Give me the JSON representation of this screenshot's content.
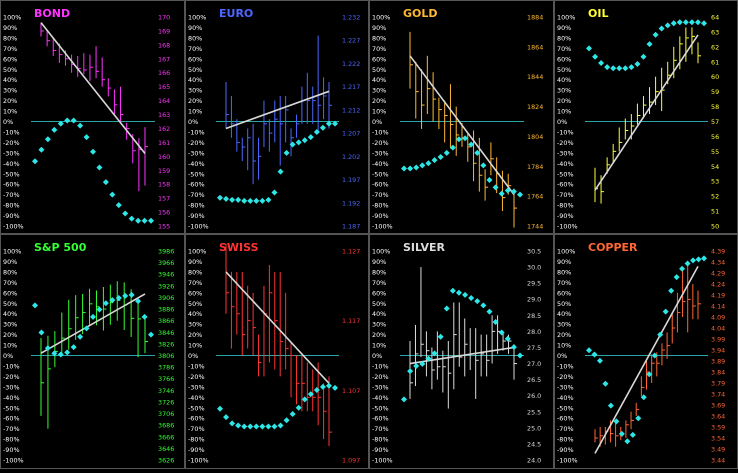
{
  "pct_labels": [
    "100%",
    "90%",
    "80%",
    "70%",
    "60%",
    "50%",
    "40%",
    "30%",
    "20%",
    "10%",
    "0%",
    "-10%",
    "-20%",
    "-30%",
    "-40%",
    "-50%",
    "-60%",
    "-70%",
    "-80%",
    "-90%",
    "-100%"
  ],
  "colors": {
    "background": "#000000",
    "divider": "#555555",
    "zero_line": "#2aa6a6",
    "oscillator": "#2ee6e6",
    "trend": "#d8d8d8"
  },
  "chart_data": [
    {
      "type": "bar",
      "title": "BOND",
      "color": "#ff33ff",
      "price_ticks": [
        "170",
        "169",
        "168",
        "167",
        "166",
        "165",
        "164",
        "163",
        "162",
        "161",
        "160",
        "159",
        "158",
        "157",
        "156",
        "155"
      ],
      "price_range": [
        155,
        170
      ],
      "bars": [
        [
          168.6,
          169.6,
          169.0
        ],
        [
          167.9,
          169.0,
          168.3
        ],
        [
          167.2,
          168.5,
          167.6
        ],
        [
          166.7,
          168.1,
          167.3
        ],
        [
          166.5,
          167.6,
          167.0
        ],
        [
          166.0,
          167.3,
          166.6
        ],
        [
          165.7,
          167.2,
          166.3
        ],
        [
          165.9,
          167.4,
          166.2
        ],
        [
          165.4,
          167.3,
          166.4
        ],
        [
          165.6,
          167.9,
          166.1
        ],
        [
          165.0,
          167.1,
          165.5
        ],
        [
          164.3,
          165.6,
          164.9
        ],
        [
          163.0,
          164.8,
          163.7
        ],
        [
          162.4,
          165.0,
          163.0
        ],
        [
          161.2,
          162.4,
          162.0
        ],
        [
          159.5,
          161.6,
          160.4
        ],
        [
          157.5,
          161.3,
          160.5
        ],
        [
          157.9,
          162.1,
          160.7
        ]
      ],
      "trend": [
        [
          0,
          169.6
        ],
        [
          17,
          160.2
        ]
      ],
      "osc": [
        -38,
        -27,
        -17,
        -8,
        -2,
        1,
        1,
        -4,
        -15,
        -29,
        -44,
        -58,
        -70,
        -80,
        -88,
        -93,
        -95,
        -95,
        -95
      ]
    },
    {
      "type": "bar",
      "title": "EURO",
      "color": "#4d66ff",
      "price_ticks": [
        "1.232",
        "1.227",
        "1.222",
        "1.217",
        "1.212",
        "1.207",
        "1.202",
        "1.197",
        "1.192",
        "1.187"
      ],
      "price_range": [
        1.187,
        1.232
      ],
      "bars": [
        [
          1.208,
          1.218,
          1.211
        ],
        [
          1.206,
          1.215,
          1.209
        ],
        [
          1.203,
          1.21,
          1.205
        ],
        [
          1.201,
          1.206,
          1.204
        ],
        [
          1.199,
          1.208,
          1.206
        ],
        [
          1.196,
          1.209,
          1.201
        ],
        [
          1.197,
          1.206,
          1.202
        ],
        [
          1.204,
          1.214,
          1.209
        ],
        [
          1.203,
          1.21,
          1.207
        ],
        [
          1.205,
          1.214,
          1.21
        ],
        [
          1.2,
          1.215,
          1.209
        ],
        [
          1.205,
          1.215,
          1.212
        ],
        [
          1.202,
          1.208,
          1.206
        ],
        [
          1.206,
          1.211,
          1.209
        ],
        [
          1.209,
          1.217,
          1.214
        ],
        [
          1.209,
          1.22,
          1.214
        ],
        [
          1.209,
          1.217,
          1.214
        ],
        [
          1.207,
          1.228,
          1.213
        ],
        [
          1.21,
          1.219,
          1.215
        ],
        [
          1.208,
          1.218,
          1.213
        ]
      ],
      "trend": [
        [
          0,
          1.208
        ],
        [
          19,
          1.216
        ]
      ],
      "osc": [
        -73,
        -74,
        -75,
        -75,
        -76,
        -76,
        -76,
        -76,
        -75,
        -68,
        -48,
        -30,
        -22,
        -20,
        -18,
        -15,
        -10,
        -6,
        -2,
        -2
      ]
    },
    {
      "type": "bar",
      "title": "GOLD",
      "color": "#ffb833",
      "price_ticks": [
        "1884",
        "1864",
        "1844",
        "1824",
        "1804",
        "1784",
        "1764",
        "1744"
      ],
      "price_range": [
        1744,
        1884
      ],
      "bars": [
        [
          1836,
          1874,
          1852
        ],
        [
          1816,
          1854,
          1834
        ],
        [
          1809,
          1849,
          1825
        ],
        [
          1819,
          1858,
          1836
        ],
        [
          1814,
          1847,
          1829
        ],
        [
          1809,
          1830,
          1822
        ],
        [
          1800,
          1828,
          1818
        ],
        [
          1796,
          1839,
          1812
        ],
        [
          1791,
          1824,
          1805
        ],
        [
          1797,
          1813,
          1803
        ],
        [
          1787,
          1806,
          1797
        ],
        [
          1774,
          1808,
          1786
        ],
        [
          1767,
          1803,
          1778
        ],
        [
          1761,
          1782,
          1770
        ],
        [
          1778,
          1800,
          1789
        ],
        [
          1766,
          1790,
          1779
        ],
        [
          1754,
          1781,
          1763
        ],
        [
          1765,
          1779,
          1771
        ],
        [
          1743,
          1769,
          1756
        ]
      ],
      "trend": [
        [
          0,
          1858
        ],
        [
          18,
          1765
        ]
      ],
      "osc": [
        -45,
        -45,
        -44,
        -42,
        -40,
        -37,
        -34,
        -30,
        -25,
        -17,
        -16,
        -22,
        -30,
        -42,
        -56,
        -63,
        -69,
        -66,
        -67,
        -70
      ]
    },
    {
      "type": "bar",
      "title": "OIL",
      "color": "#ffff33",
      "price_ticks": [
        "64",
        "63",
        "62",
        "61",
        "60",
        "59",
        "58",
        "57",
        "56",
        "55",
        "54",
        "53",
        "52",
        "51",
        "50"
      ],
      "price_range": [
        50,
        64
      ],
      "bars": [
        [
          51.6,
          53.9,
          52.5
        ],
        [
          51.5,
          53.4,
          52.3
        ],
        [
          53.5,
          54.6,
          54.1
        ],
        [
          54.3,
          55.5,
          55.0
        ],
        [
          55.0,
          56.6,
          55.6
        ],
        [
          55.8,
          57.2,
          56.4
        ],
        [
          55.8,
          57.5,
          56.7
        ],
        [
          56.8,
          58.2,
          57.4
        ],
        [
          57.2,
          58.7,
          58.1
        ],
        [
          57.5,
          59.3,
          58.3
        ],
        [
          58.1,
          60.0,
          59.0
        ],
        [
          57.7,
          60.6,
          59.1
        ],
        [
          59.5,
          61.0,
          60.1
        ],
        [
          59.9,
          62.0,
          61.1
        ],
        [
          60.5,
          62.7,
          62.2
        ],
        [
          61.0,
          63.3,
          62.6
        ],
        [
          61.5,
          63.3,
          62.7
        ],
        [
          60.9,
          62.3,
          61.4
        ]
      ],
      "trend": [
        [
          0,
          52.4
        ],
        [
          17,
          62.8
        ]
      ],
      "osc": [
        70,
        62,
        56,
        52,
        51,
        51,
        51,
        52,
        55,
        62,
        74,
        83,
        89,
        92,
        94,
        95,
        95,
        95,
        95,
        94
      ]
    },
    {
      "type": "bar",
      "title": "S&P 500",
      "color": "#33ff33",
      "price_ticks": [
        "3986",
        "3966",
        "3946",
        "3926",
        "3906",
        "3886",
        "3866",
        "3846",
        "3826",
        "3806",
        "3786",
        "3766",
        "3746",
        "3726",
        "3706",
        "3686",
        "3666",
        "3646",
        "3626"
      ],
      "price_range": [
        3626,
        3986
      ],
      "bars": [
        [
          3702,
          3836,
          3759
        ],
        [
          3680,
          3840,
          3783
        ],
        [
          3786,
          3848,
          3813
        ],
        [
          3806,
          3880,
          3836
        ],
        [
          3816,
          3902,
          3852
        ],
        [
          3833,
          3910,
          3871
        ],
        [
          3843,
          3912,
          3880
        ],
        [
          3856,
          3921,
          3895
        ],
        [
          3858,
          3918,
          3890
        ],
        [
          3849,
          3924,
          3886
        ],
        [
          3859,
          3928,
          3897
        ],
        [
          3866,
          3934,
          3901
        ],
        [
          3850,
          3932,
          3893
        ],
        [
          3838,
          3920,
          3870
        ],
        [
          3803,
          3903,
          3869
        ],
        [
          3810,
          3870,
          3830
        ]
      ],
      "trend": [
        [
          0,
          3810
        ],
        [
          15,
          3912
        ]
      ],
      "osc": [
        48,
        22,
        7,
        2,
        1,
        3,
        8,
        18,
        26,
        37,
        44,
        50,
        53,
        55,
        57,
        58,
        52,
        37,
        20
      ]
    },
    {
      "type": "bar",
      "title": "SWISS",
      "color": "#ff3333",
      "price_ticks": [
        "1.127",
        "1.117",
        "1.107",
        "1.097"
      ],
      "price_range": [
        1.097,
        1.127
      ],
      "bars": [
        [
          1.118,
          1.128,
          1.121
        ],
        [
          1.113,
          1.124,
          1.119
        ],
        [
          1.115,
          1.124,
          1.118
        ],
        [
          1.112,
          1.124,
          1.115
        ],
        [
          1.113,
          1.122,
          1.117
        ],
        [
          1.112,
          1.121,
          1.116
        ],
        [
          1.109,
          1.115,
          1.111
        ],
        [
          1.109,
          1.122,
          1.118
        ],
        [
          1.111,
          1.125,
          1.121
        ],
        [
          1.11,
          1.124,
          1.117
        ],
        [
          1.109,
          1.124,
          1.114
        ],
        [
          1.11,
          1.121,
          1.113
        ],
        [
          1.106,
          1.114,
          1.112
        ],
        [
          1.105,
          1.112,
          1.108
        ],
        [
          1.104,
          1.112,
          1.108
        ],
        [
          1.104,
          1.111,
          1.106
        ],
        [
          1.104,
          1.11,
          1.106
        ],
        [
          1.102,
          1.111,
          1.106
        ],
        [
          1.1,
          1.108,
          1.104
        ],
        [
          1.099,
          1.109,
          1.101
        ]
      ],
      "trend": [
        [
          0,
          1.124
        ],
        [
          19,
          1.108
        ]
      ],
      "osc": [
        -51,
        -59,
        -65,
        -67,
        -68,
        -68,
        -68,
        -68,
        -68,
        -68,
        -67,
        -62,
        -56,
        -50,
        -42,
        -37,
        -33,
        -30,
        -29,
        -31
      ]
    },
    {
      "type": "bar",
      "title": "SILVER",
      "color": "#dcdcdc",
      "price_ticks": [
        "30.5",
        "30.0",
        "29.5",
        "29.0",
        "28.5",
        "28.0",
        "27.5",
        "27.0",
        "26.5",
        "26.0",
        "25.5",
        "25.0",
        "24.5",
        "24.0"
      ],
      "price_range": [
        24.0,
        30.5
      ],
      "bars": [
        [
          25.9,
          27.7,
          26.4
        ],
        [
          26.3,
          28.2,
          27.3
        ],
        [
          27.2,
          30.0,
          27.6
        ],
        [
          26.6,
          28.0,
          27.4
        ],
        [
          26.2,
          27.5,
          26.8
        ],
        [
          26.5,
          28.0,
          26.9
        ],
        [
          26.1,
          27.4,
          26.9
        ],
        [
          25.6,
          27.7,
          26.7
        ],
        [
          26.2,
          28.9,
          27.9
        ],
        [
          26.9,
          28.9,
          27.2
        ],
        [
          26.6,
          28.4,
          27.6
        ],
        [
          26.8,
          28.1,
          27.3
        ],
        [
          25.9,
          28.1,
          27.1
        ],
        [
          26.6,
          27.9,
          27.3
        ],
        [
          26.6,
          27.9,
          27.1
        ],
        [
          27.0,
          28.5,
          28.0
        ],
        [
          27.3,
          28.5,
          28.0
        ],
        [
          27.4,
          28.0,
          27.7
        ],
        [
          27.3,
          27.9,
          27.7
        ],
        [
          26.5,
          27.6,
          27.0
        ]
      ],
      "trend": [
        [
          0,
          27.0
        ],
        [
          19,
          27.5
        ]
      ],
      "osc": [
        -42,
        -15,
        -10,
        -8,
        -3,
        2,
        18,
        45,
        62,
        60,
        58,
        55,
        52,
        48,
        42,
        32,
        22,
        16,
        8,
        0
      ]
    },
    {
      "type": "bar",
      "title": "COPPER",
      "color": "#ff6633",
      "price_ticks": [
        "4.39",
        "4.34",
        "4.29",
        "4.24",
        "4.19",
        "4.14",
        "4.09",
        "4.04",
        "3.99",
        "3.94",
        "3.89",
        "3.84",
        "3.79",
        "3.74",
        "3.69",
        "3.64",
        "3.59",
        "3.54",
        "3.49",
        "3.44"
      ],
      "price_range": [
        3.44,
        4.39
      ],
      "bars": [
        [
          3.52,
          3.58,
          3.54
        ],
        [
          3.5,
          3.59,
          3.55
        ],
        [
          3.51,
          3.59,
          3.57
        ],
        [
          3.52,
          3.62,
          3.56
        ],
        [
          3.5,
          3.61,
          3.55
        ],
        [
          3.53,
          3.59,
          3.56
        ],
        [
          3.54,
          3.62,
          3.6
        ],
        [
          3.58,
          3.66,
          3.62
        ],
        [
          3.64,
          3.7,
          3.67
        ],
        [
          3.73,
          3.82,
          3.77
        ],
        [
          3.76,
          3.89,
          3.84
        ],
        [
          3.79,
          3.92,
          3.88
        ],
        [
          3.82,
          3.93,
          3.88
        ],
        [
          3.87,
          3.97,
          3.94
        ],
        [
          3.9,
          4.02,
          3.96
        ],
        [
          3.97,
          4.11,
          4.04
        ],
        [
          4.02,
          4.2,
          4.11
        ],
        [
          4.09,
          4.3,
          4.16
        ],
        [
          4.02,
          4.34,
          4.17
        ],
        [
          4.08,
          4.24,
          4.14
        ],
        [
          4.08,
          4.21,
          4.15
        ]
      ],
      "trend": [
        [
          0,
          3.47
        ],
        [
          20,
          4.32
        ]
      ],
      "osc": [
        5,
        1,
        -5,
        -27,
        -48,
        -63,
        -75,
        -82,
        -76,
        -60,
        -40,
        -18,
        0,
        20,
        42,
        62,
        75,
        83,
        88,
        91,
        92,
        93
      ]
    }
  ]
}
